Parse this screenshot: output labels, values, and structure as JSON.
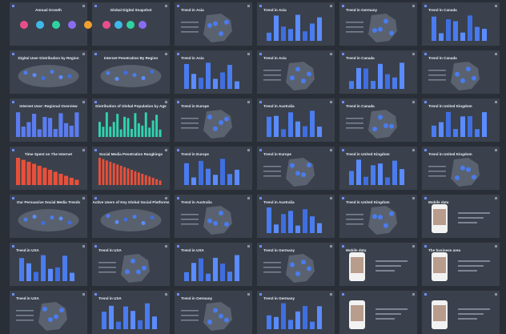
{
  "slides": [
    {
      "title": "Annual Growth"
    },
    {
      "title": "Global Digital Snapshot"
    },
    {
      "title": "Trend in Asia"
    },
    {
      "title": "Trend in Asia"
    },
    {
      "title": "Trend in Germany"
    },
    {
      "title": "Trend in Canada"
    },
    {
      "title": "Digital User Distribution by Region"
    },
    {
      "title": "Internet Penetration By Region"
    },
    {
      "title": "Trend in Asia"
    },
    {
      "title": "Trend in Asia"
    },
    {
      "title": "Trend in Canada"
    },
    {
      "title": "Trend in Canada"
    },
    {
      "title": "Internet User: Regional Overview"
    },
    {
      "title": "Distribution of Global Population by Age"
    },
    {
      "title": "Trend in Europe"
    },
    {
      "title": "Trend in Australia"
    },
    {
      "title": "Trend in Canada"
    },
    {
      "title": "Trend in United Kingdom"
    },
    {
      "title": "Time Spent on The Internet"
    },
    {
      "title": "Social Media Penetration Rangkings"
    },
    {
      "title": "Trend in Europe"
    },
    {
      "title": "Trend in Europe"
    },
    {
      "title": "Trend in United Kingdom"
    },
    {
      "title": "Trend in United Kingdom"
    },
    {
      "title": "Our Persuasive Social Media Trends"
    },
    {
      "title": "Active Users of Key Global Social Platforms"
    },
    {
      "title": "Trend in Australia"
    },
    {
      "title": "Trend in Australia"
    },
    {
      "title": "Trend in United Kingdom"
    },
    {
      "title": "Mobile data"
    },
    {
      "title": "Trend in USA"
    },
    {
      "title": "Trend in USA"
    },
    {
      "title": "Trend in USA"
    },
    {
      "title": "Trend in Germany"
    },
    {
      "title": "Mobile data"
    },
    {
      "title": "The business area"
    },
    {
      "title": "Trend in USA"
    },
    {
      "title": "Trend in USA"
    },
    {
      "title": "Trend in Germany"
    },
    {
      "title": "Trend in Germany"
    }
  ]
}
